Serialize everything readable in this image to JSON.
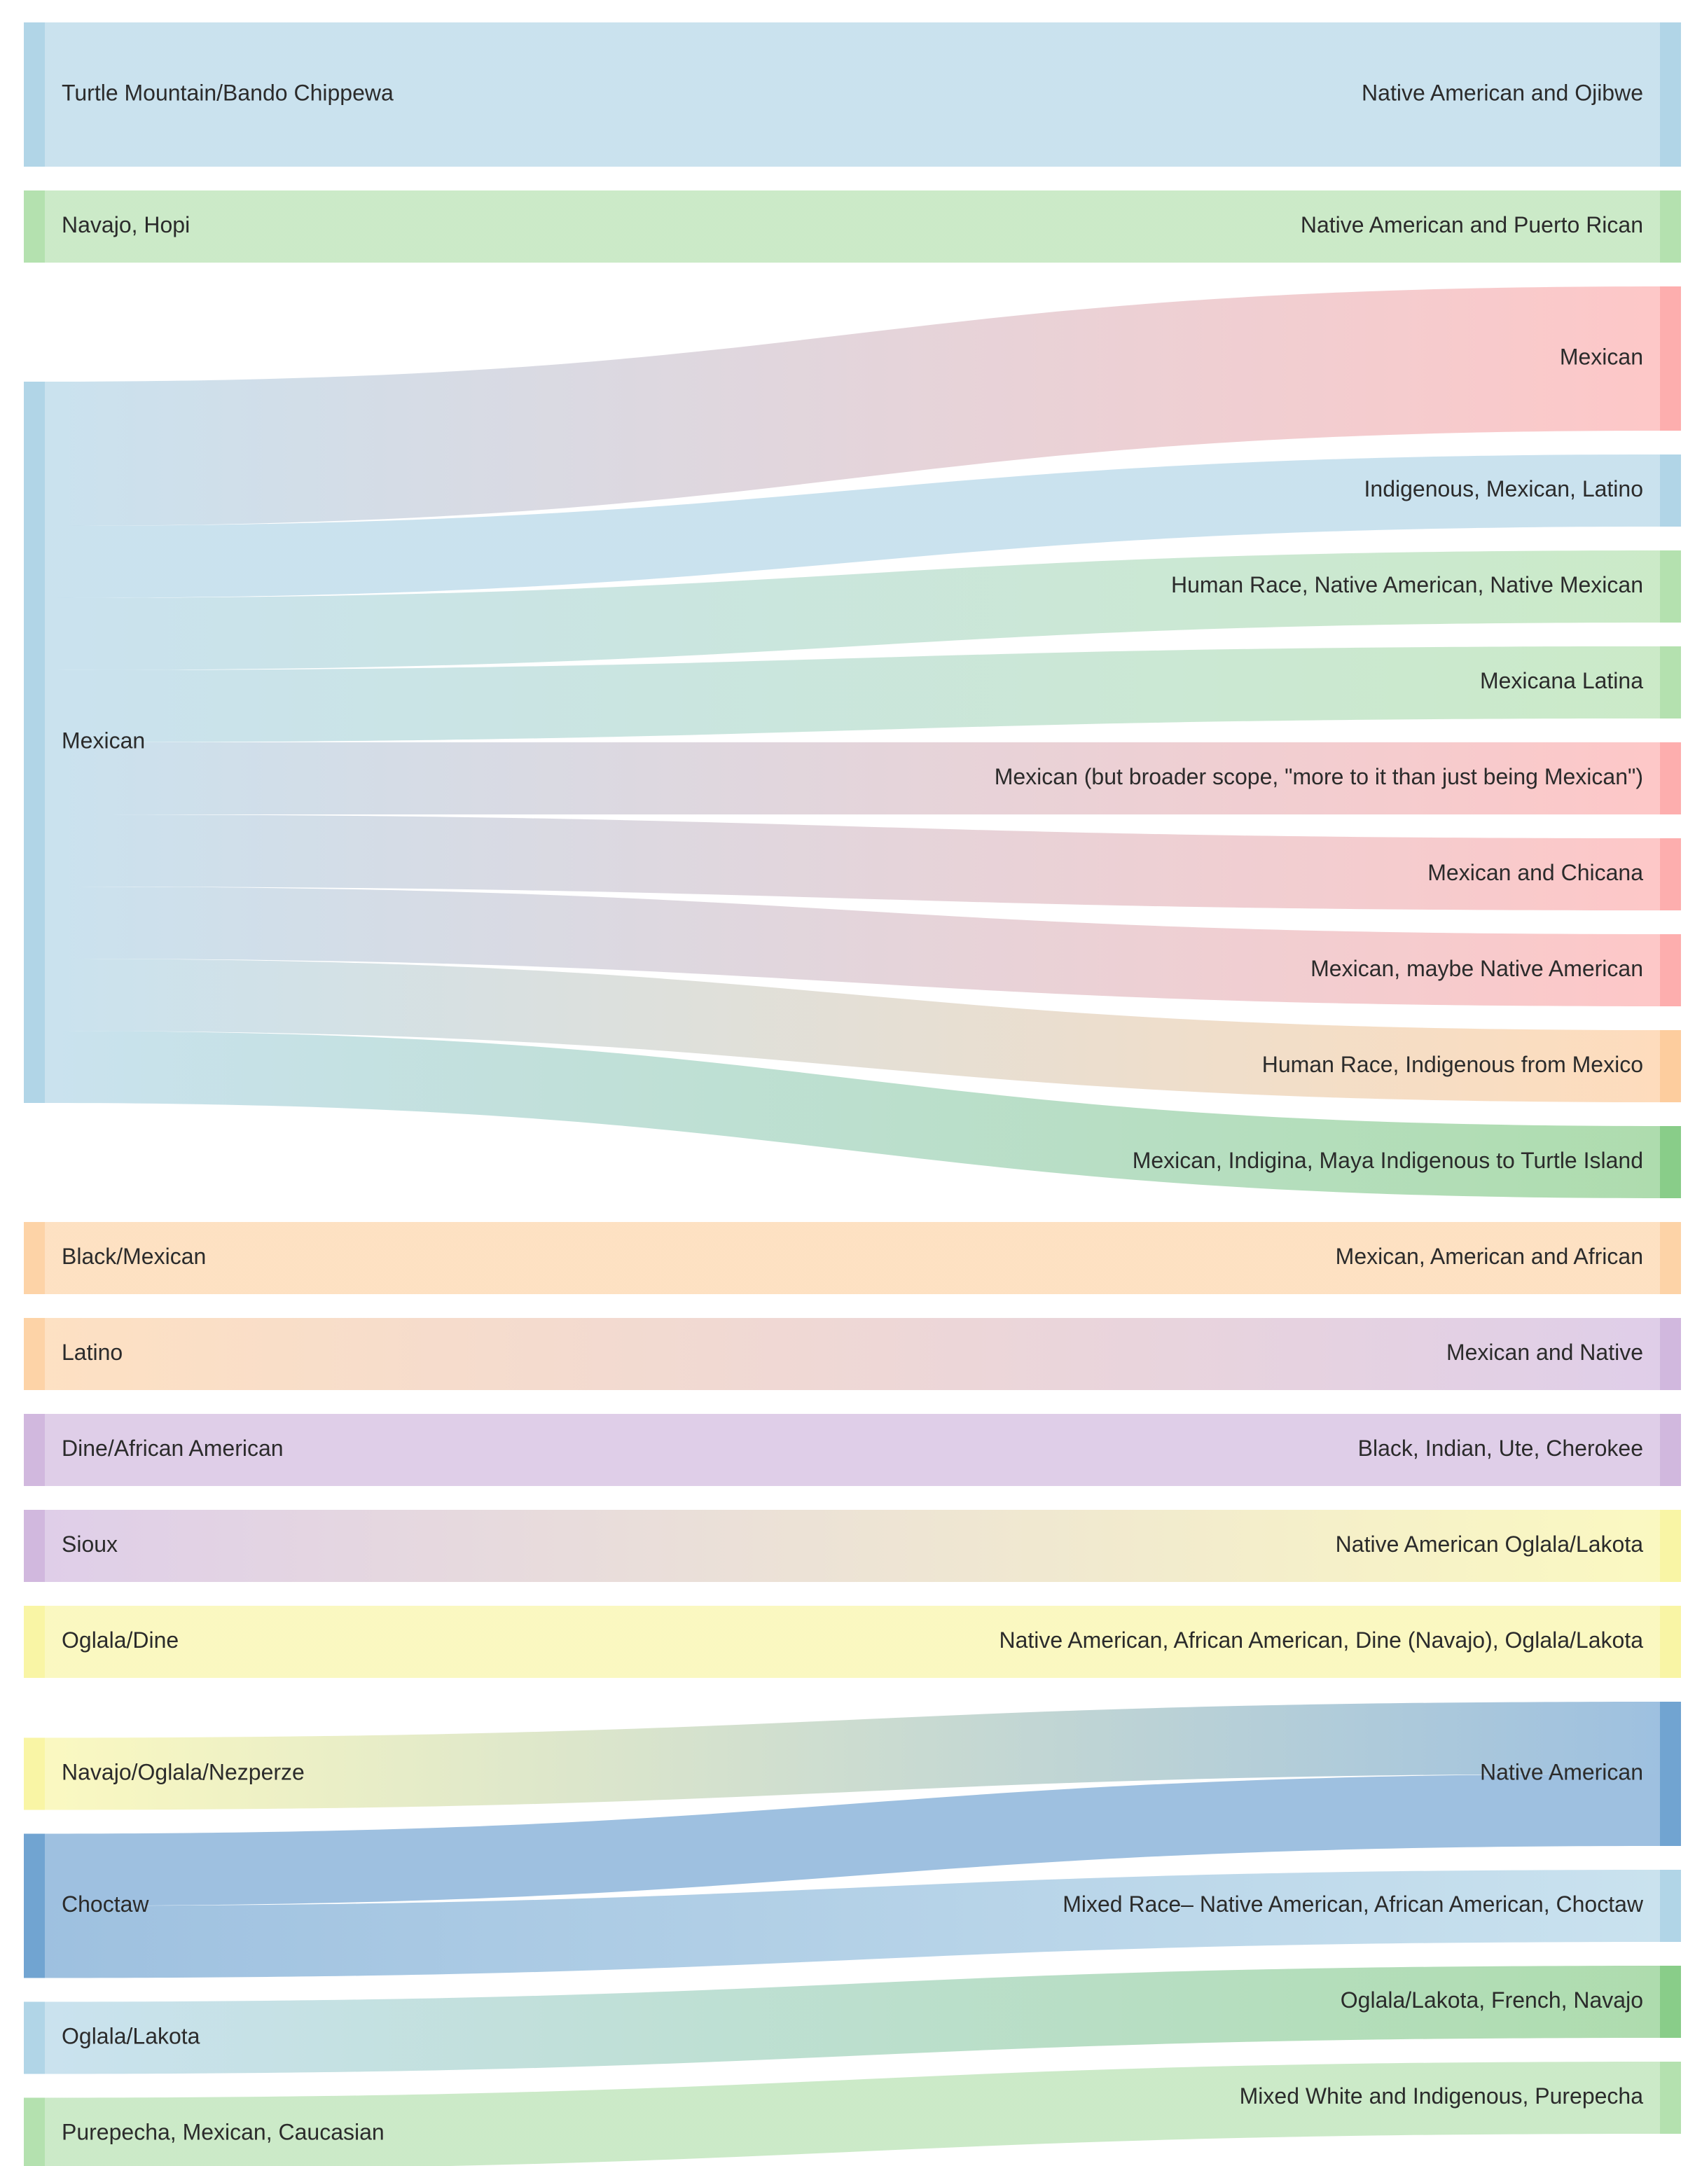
{
  "chart_data": {
    "type": "sankey",
    "title": "",
    "colors": {
      "light_blue": "#9ecae1",
      "green": "#a1d99b",
      "red": "#fc9a9a",
      "orange": "#fdc086",
      "purple": "#c5a6d6",
      "yellow": "#f7f38e",
      "blue": "#4e8dc6",
      "med_green": "#6cc06b",
      "peach": "#fcc891"
    },
    "sources": [
      {
        "id": "s_turtle",
        "label": "Turtle Mountain/Bando Chippewa",
        "color": "light_blue"
      },
      {
        "id": "s_navhopi",
        "label": "Navajo, Hopi",
        "color": "green"
      },
      {
        "id": "s_mexican",
        "label": "Mexican",
        "color": "light_blue"
      },
      {
        "id": "s_blackmex",
        "label": "Black/Mexican",
        "color": "peach"
      },
      {
        "id": "s_latino",
        "label": "Latino",
        "color": "peach"
      },
      {
        "id": "s_dine",
        "label": "Dine/African American",
        "color": "purple"
      },
      {
        "id": "s_sioux",
        "label": "Sioux",
        "color": "purple"
      },
      {
        "id": "s_ogldine",
        "label": "Oglala/Dine",
        "color": "yellow"
      },
      {
        "id": "s_navogl",
        "label": "Navajo/Oglala/Nezperze",
        "color": "yellow"
      },
      {
        "id": "s_choctaw",
        "label": "Choctaw",
        "color": "blue"
      },
      {
        "id": "s_ogllak",
        "label": "Oglala/Lakota",
        "color": "light_blue"
      },
      {
        "id": "s_purep",
        "label": "Purepecha, Mexican, Caucasian",
        "color": "green"
      }
    ],
    "targets": [
      {
        "id": "t_ojibwe",
        "label": "Native American and Ojibwe",
        "color": "light_blue"
      },
      {
        "id": "t_puerto",
        "label": "Native American and Puerto Rican",
        "color": "green"
      },
      {
        "id": "t_mexican",
        "label": "Mexican",
        "color": "red"
      },
      {
        "id": "t_indig",
        "label": "Indigenous, Mexican, Latino",
        "color": "light_blue"
      },
      {
        "id": "t_human1",
        "label": "Human Race, Native American, Native Mexican",
        "color": "green"
      },
      {
        "id": "t_mexlat",
        "label": "Mexicana Latina",
        "color": "green"
      },
      {
        "id": "t_broader",
        "label": "Mexican (but broader scope, \"more to it than just being Mexican\")",
        "color": "red"
      },
      {
        "id": "t_chicana",
        "label": "Mexican and Chicana",
        "color": "red"
      },
      {
        "id": "t_maybe",
        "label": "Mexican, maybe Native American",
        "color": "red"
      },
      {
        "id": "t_human2",
        "label": "Human Race, Indigenous from Mexico",
        "color": "orange"
      },
      {
        "id": "t_maya",
        "label": "Mexican, Indigina, Maya Indigenous to Turtle Island",
        "color": "med_green"
      },
      {
        "id": "t_african",
        "label": "Mexican, American and African",
        "color": "peach"
      },
      {
        "id": "t_native",
        "label": "Mexican and Native",
        "color": "purple"
      },
      {
        "id": "t_ute",
        "label": "Black, Indian, Ute, Cherokee",
        "color": "purple"
      },
      {
        "id": "t_oglala",
        "label": "Native American Oglala/Lakota",
        "color": "yellow"
      },
      {
        "id": "t_afam",
        "label": "Native American, African American, Dine (Navajo), Oglala/Lakota",
        "color": "yellow"
      },
      {
        "id": "t_natam",
        "label": "Native American",
        "color": "blue"
      },
      {
        "id": "t_mixed",
        "label": "Mixed Race– Native American, African American, Choctaw",
        "color": "light_blue"
      },
      {
        "id": "t_french",
        "label": "Oglala/Lakota, French, Navajo",
        "color": "med_green"
      },
      {
        "id": "t_purep",
        "label": "Mixed White and Indigenous, Purepecha",
        "color": "green"
      }
    ],
    "links": [
      {
        "source": "s_turtle",
        "target": "t_ojibwe",
        "value": 2
      },
      {
        "source": "s_navhopi",
        "target": "t_puerto",
        "value": 1
      },
      {
        "source": "s_mexican",
        "target": "t_mexican",
        "value": 2
      },
      {
        "source": "s_mexican",
        "target": "t_indig",
        "value": 1
      },
      {
        "source": "s_mexican",
        "target": "t_human1",
        "value": 1
      },
      {
        "source": "s_mexican",
        "target": "t_mexlat",
        "value": 1
      },
      {
        "source": "s_mexican",
        "target": "t_broader",
        "value": 1
      },
      {
        "source": "s_mexican",
        "target": "t_chicana",
        "value": 1
      },
      {
        "source": "s_mexican",
        "target": "t_maybe",
        "value": 1
      },
      {
        "source": "s_mexican",
        "target": "t_human2",
        "value": 1
      },
      {
        "source": "s_mexican",
        "target": "t_maya",
        "value": 1
      },
      {
        "source": "s_blackmex",
        "target": "t_african",
        "value": 1
      },
      {
        "source": "s_latino",
        "target": "t_native",
        "value": 1
      },
      {
        "source": "s_dine",
        "target": "t_ute",
        "value": 1
      },
      {
        "source": "s_sioux",
        "target": "t_oglala",
        "value": 1
      },
      {
        "source": "s_ogldine",
        "target": "t_afam",
        "value": 1
      },
      {
        "source": "s_navogl",
        "target": "t_natam",
        "value": 1
      },
      {
        "source": "s_choctaw",
        "target": "t_natam",
        "value": 1
      },
      {
        "source": "s_choctaw",
        "target": "t_mixed",
        "value": 1
      },
      {
        "source": "s_ogllak",
        "target": "t_french",
        "value": 1
      },
      {
        "source": "s_purep",
        "target": "t_purep",
        "value": 1
      }
    ]
  }
}
